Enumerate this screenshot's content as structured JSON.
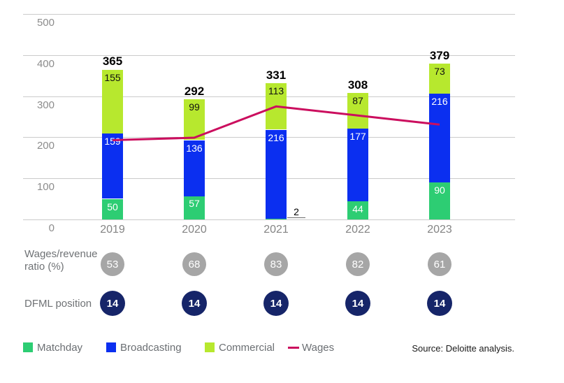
{
  "chart_data": {
    "type": "bar",
    "subtype": "stacked-bar-with-line",
    "categories": [
      "2019",
      "2020",
      "2021",
      "2022",
      "2023"
    ],
    "series": [
      {
        "name": "Matchday",
        "color": "#2dcd73",
        "values": [
          50,
          57,
          2,
          44,
          90
        ]
      },
      {
        "name": "Broadcasting",
        "color": "#0b2ff0",
        "values": [
          159,
          136,
          216,
          177,
          216
        ]
      },
      {
        "name": "Commercial",
        "color": "#b7e82e",
        "values": [
          155,
          99,
          113,
          87,
          73
        ]
      }
    ],
    "totals": [
      365,
      292,
      331,
      308,
      379
    ],
    "line_series": {
      "name": "Wages",
      "color": "#cb0e5e",
      "values_estimated": [
        193,
        199,
        275,
        253,
        231
      ]
    },
    "title": "",
    "xlabel": "",
    "ylabel": "",
    "ylim": [
      0,
      500
    ],
    "yticks": [
      0,
      100,
      200,
      300,
      400,
      500
    ],
    "grid": true,
    "legend_position": "bottom"
  },
  "rows": {
    "ratio": {
      "label_line1": "Wages/revenue",
      "label_line2": "ratio (%)",
      "values": [
        "53",
        "68",
        "83",
        "82",
        "61"
      ],
      "circle_color": "#a6a6a6"
    },
    "dfml": {
      "label": "DFML position",
      "values": [
        "14",
        "14",
        "14",
        "14",
        "14"
      ],
      "circle_color": "#162569"
    }
  },
  "source": "Source: Deloitte analysis."
}
